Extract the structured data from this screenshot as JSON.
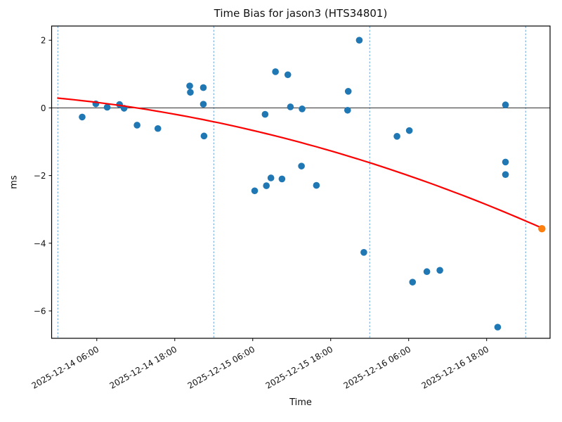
{
  "figure": {
    "title": "Time Bias for jason3 (HTS34801)",
    "background_color": "#ffffff"
  },
  "chart_data": {
    "type": "scatter",
    "title": "Time Bias for jason3 (HTS34801)",
    "xlabel": "Time",
    "ylabel": "ms",
    "x_axis": {
      "epoch": "2025-12-14 00:00",
      "hours_range": [
        -0.95,
        75.76
      ],
      "tick_hours": [
        6,
        18,
        30,
        42,
        54,
        66
      ],
      "tick_labels": [
        "2025-12-14 06:00",
        "2025-12-14 18:00",
        "2025-12-15 06:00",
        "2025-12-15 18:00",
        "2025-12-16 06:00",
        "2025-12-16 18:00"
      ],
      "day_boundary_hours": [
        0,
        24,
        48,
        72
      ]
    },
    "y_axis": {
      "range": [
        -6.81,
        2.42
      ],
      "tick_values": [
        2,
        0,
        -2,
        -4,
        -6
      ],
      "tick_labels": [
        "2",
        "0",
        "−2",
        "−4",
        "−6"
      ],
      "zero_line": true
    },
    "series": [
      {
        "name": "time-bias-measurements",
        "type": "scatter",
        "color": "#1f77b4",
        "marker_radius": 4.8,
        "points": [
          {
            "time": "2025-12-14 03:45",
            "hours": 3.75,
            "ms": -0.27
          },
          {
            "time": "2025-12-14 05:50",
            "hours": 5.85,
            "ms": 0.12
          },
          {
            "time": "2025-12-14 07:35",
            "hours": 7.6,
            "ms": 0.02
          },
          {
            "time": "2025-12-14 09:30",
            "hours": 9.5,
            "ms": 0.1
          },
          {
            "time": "2025-12-14 10:10",
            "hours": 10.2,
            "ms": -0.01
          },
          {
            "time": "2025-12-14 12:10",
            "hours": 12.2,
            "ms": -0.51
          },
          {
            "time": "2025-12-14 15:25",
            "hours": 15.4,
            "ms": -0.61
          },
          {
            "time": "2025-12-14 20:20",
            "hours": 20.3,
            "ms": 0.65
          },
          {
            "time": "2025-12-14 20:25",
            "hours": 20.4,
            "ms": 0.46
          },
          {
            "time": "2025-12-14 22:25",
            "hours": 22.4,
            "ms": 0.6
          },
          {
            "time": "2025-12-14 22:25",
            "hours": 22.4,
            "ms": 0.11
          },
          {
            "time": "2025-12-14 22:30",
            "hours": 22.5,
            "ms": -0.83
          },
          {
            "time": "2025-12-15 06:20",
            "hours": 30.3,
            "ms": -2.45
          },
          {
            "time": "2025-12-15 07:55",
            "hours": 31.9,
            "ms": -0.19
          },
          {
            "time": "2025-12-15 08:05",
            "hours": 32.1,
            "ms": -2.3
          },
          {
            "time": "2025-12-15 08:50",
            "hours": 32.8,
            "ms": -2.07
          },
          {
            "time": "2025-12-15 09:30",
            "hours": 33.5,
            "ms": 1.07
          },
          {
            "time": "2025-12-15 10:30",
            "hours": 34.5,
            "ms": -2.1
          },
          {
            "time": "2025-12-15 11:25",
            "hours": 35.4,
            "ms": 0.98
          },
          {
            "time": "2025-12-15 11:50",
            "hours": 35.8,
            "ms": 0.03
          },
          {
            "time": "2025-12-15 13:30",
            "hours": 37.5,
            "ms": -1.72
          },
          {
            "time": "2025-12-15 13:35",
            "hours": 37.6,
            "ms": -0.03
          },
          {
            "time": "2025-12-15 15:50",
            "hours": 39.8,
            "ms": -2.29
          },
          {
            "time": "2025-12-15 20:35",
            "hours": 44.6,
            "ms": -0.07
          },
          {
            "time": "2025-12-15 20:40",
            "hours": 44.7,
            "ms": 0.49
          },
          {
            "time": "2025-12-15 22:25",
            "hours": 46.4,
            "ms": 2.0
          },
          {
            "time": "2025-12-15 23:05",
            "hours": 47.1,
            "ms": -4.27
          },
          {
            "time": "2025-12-16 04:10",
            "hours": 52.2,
            "ms": -0.84
          },
          {
            "time": "2025-12-16 06:05",
            "hours": 54.1,
            "ms": -0.67
          },
          {
            "time": "2025-12-16 06:35",
            "hours": 54.6,
            "ms": -5.15
          },
          {
            "time": "2025-12-16 08:50",
            "hours": 56.8,
            "ms": -4.84
          },
          {
            "time": "2025-12-16 10:50",
            "hours": 58.8,
            "ms": -4.8
          },
          {
            "time": "2025-12-16 19:40",
            "hours": 67.7,
            "ms": -6.48
          },
          {
            "time": "2025-12-16 20:55",
            "hours": 68.9,
            "ms": 0.09
          },
          {
            "time": "2025-12-16 20:55",
            "hours": 68.9,
            "ms": -1.6
          },
          {
            "time": "2025-12-16 20:55",
            "hours": 68.9,
            "ms": -1.97
          }
        ]
      },
      {
        "name": "quadratic-fit-curve",
        "type": "line",
        "color": "#ff0000",
        "line_width": 2.2,
        "fit": {
          "kind": "quadratic",
          "coeffs_ms_vs_hours": [
            0.29,
            -0.018545,
            -0.0004427
          ],
          "hours_range": [
            0,
            74.5
          ]
        }
      },
      {
        "name": "extrapolated-point",
        "type": "scatter",
        "color": "#ff7f0e",
        "marker_radius": 5.2,
        "points": [
          {
            "time": "2025-12-17 02:30",
            "hours": 74.5,
            "ms": -3.57
          }
        ]
      }
    ],
    "styles": {
      "day_line_color": "#5599d5",
      "zero_line_color": "#2a2a2a",
      "frame_color": "#000000",
      "tick_font_size": 12,
      "x_tick_rotation_deg": -30
    },
    "grid": "day-boundaries-only",
    "legend": "none"
  }
}
